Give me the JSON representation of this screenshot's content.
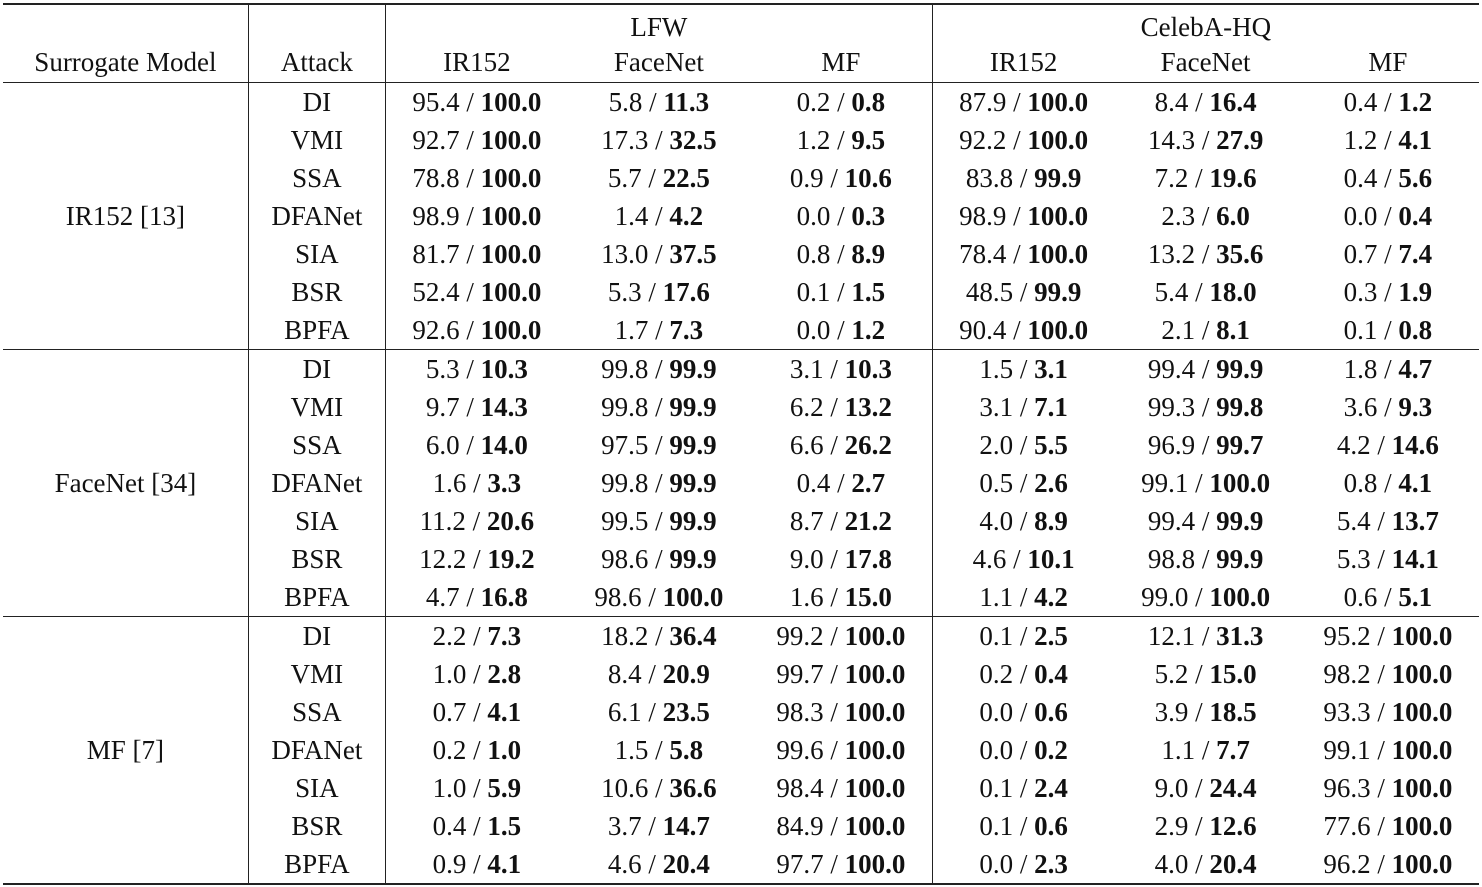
{
  "header": {
    "surrogate_model": "Surrogate Model",
    "attack": "Attack",
    "datasets": [
      {
        "name": "LFW",
        "models": [
          "IR152",
          "FaceNet",
          "MF"
        ]
      },
      {
        "name": "CelebA-HQ",
        "models": [
          "IR152",
          "FaceNet",
          "MF"
        ]
      }
    ]
  },
  "groups": [
    {
      "surrogate": "IR152 [13]",
      "rows": [
        {
          "attack": "DI",
          "cells": [
            [
              "95.4",
              "100.0"
            ],
            [
              "5.8",
              "11.3"
            ],
            [
              "0.2",
              "0.8"
            ],
            [
              "87.9",
              "100.0"
            ],
            [
              "8.4",
              "16.4"
            ],
            [
              "0.4",
              "1.2"
            ]
          ]
        },
        {
          "attack": "VMI",
          "cells": [
            [
              "92.7",
              "100.0"
            ],
            [
              "17.3",
              "32.5"
            ],
            [
              "1.2",
              "9.5"
            ],
            [
              "92.2",
              "100.0"
            ],
            [
              "14.3",
              "27.9"
            ],
            [
              "1.2",
              "4.1"
            ]
          ]
        },
        {
          "attack": "SSA",
          "cells": [
            [
              "78.8",
              "100.0"
            ],
            [
              "5.7",
              "22.5"
            ],
            [
              "0.9",
              "10.6"
            ],
            [
              "83.8",
              "99.9"
            ],
            [
              "7.2",
              "19.6"
            ],
            [
              "0.4",
              "5.6"
            ]
          ]
        },
        {
          "attack": "DFANet",
          "cells": [
            [
              "98.9",
              "100.0"
            ],
            [
              "1.4",
              "4.2"
            ],
            [
              "0.0",
              "0.3"
            ],
            [
              "98.9",
              "100.0"
            ],
            [
              "2.3",
              "6.0"
            ],
            [
              "0.0",
              "0.4"
            ]
          ]
        },
        {
          "attack": "SIA",
          "cells": [
            [
              "81.7",
              "100.0"
            ],
            [
              "13.0",
              "37.5"
            ],
            [
              "0.8",
              "8.9"
            ],
            [
              "78.4",
              "100.0"
            ],
            [
              "13.2",
              "35.6"
            ],
            [
              "0.7",
              "7.4"
            ]
          ]
        },
        {
          "attack": "BSR",
          "cells": [
            [
              "52.4",
              "100.0"
            ],
            [
              "5.3",
              "17.6"
            ],
            [
              "0.1",
              "1.5"
            ],
            [
              "48.5",
              "99.9"
            ],
            [
              "5.4",
              "18.0"
            ],
            [
              "0.3",
              "1.9"
            ]
          ]
        },
        {
          "attack": "BPFA",
          "cells": [
            [
              "92.6",
              "100.0"
            ],
            [
              "1.7",
              "7.3"
            ],
            [
              "0.0",
              "1.2"
            ],
            [
              "90.4",
              "100.0"
            ],
            [
              "2.1",
              "8.1"
            ],
            [
              "0.1",
              "0.8"
            ]
          ]
        }
      ]
    },
    {
      "surrogate": "FaceNet [34]",
      "rows": [
        {
          "attack": "DI",
          "cells": [
            [
              "5.3",
              "10.3"
            ],
            [
              "99.8",
              "99.9"
            ],
            [
              "3.1",
              "10.3"
            ],
            [
              "1.5",
              "3.1"
            ],
            [
              "99.4",
              "99.9"
            ],
            [
              "1.8",
              "4.7"
            ]
          ]
        },
        {
          "attack": "VMI",
          "cells": [
            [
              "9.7",
              "14.3"
            ],
            [
              "99.8",
              "99.9"
            ],
            [
              "6.2",
              "13.2"
            ],
            [
              "3.1",
              "7.1"
            ],
            [
              "99.3",
              "99.8"
            ],
            [
              "3.6",
              "9.3"
            ]
          ]
        },
        {
          "attack": "SSA",
          "cells": [
            [
              "6.0",
              "14.0"
            ],
            [
              "97.5",
              "99.9"
            ],
            [
              "6.6",
              "26.2"
            ],
            [
              "2.0",
              "5.5"
            ],
            [
              "96.9",
              "99.7"
            ],
            [
              "4.2",
              "14.6"
            ]
          ]
        },
        {
          "attack": "DFANet",
          "cells": [
            [
              "1.6",
              "3.3"
            ],
            [
              "99.8",
              "99.9"
            ],
            [
              "0.4",
              "2.7"
            ],
            [
              "0.5",
              "2.6"
            ],
            [
              "99.1",
              "100.0"
            ],
            [
              "0.8",
              "4.1"
            ]
          ]
        },
        {
          "attack": "SIA",
          "cells": [
            [
              "11.2",
              "20.6"
            ],
            [
              "99.5",
              "99.9"
            ],
            [
              "8.7",
              "21.2"
            ],
            [
              "4.0",
              "8.9"
            ],
            [
              "99.4",
              "99.9"
            ],
            [
              "5.4",
              "13.7"
            ]
          ]
        },
        {
          "attack": "BSR",
          "cells": [
            [
              "12.2",
              "19.2"
            ],
            [
              "98.6",
              "99.9"
            ],
            [
              "9.0",
              "17.8"
            ],
            [
              "4.6",
              "10.1"
            ],
            [
              "98.8",
              "99.9"
            ],
            [
              "5.3",
              "14.1"
            ]
          ]
        },
        {
          "attack": "BPFA",
          "cells": [
            [
              "4.7",
              "16.8"
            ],
            [
              "98.6",
              "100.0"
            ],
            [
              "1.6",
              "15.0"
            ],
            [
              "1.1",
              "4.2"
            ],
            [
              "99.0",
              "100.0"
            ],
            [
              "0.6",
              "5.1"
            ]
          ]
        }
      ]
    },
    {
      "surrogate": "MF [7]",
      "rows": [
        {
          "attack": "DI",
          "cells": [
            [
              "2.2",
              "7.3"
            ],
            [
              "18.2",
              "36.4"
            ],
            [
              "99.2",
              "100.0"
            ],
            [
              "0.1",
              "2.5"
            ],
            [
              "12.1",
              "31.3"
            ],
            [
              "95.2",
              "100.0"
            ]
          ]
        },
        {
          "attack": "VMI",
          "cells": [
            [
              "1.0",
              "2.8"
            ],
            [
              "8.4",
              "20.9"
            ],
            [
              "99.7",
              "100.0"
            ],
            [
              "0.2",
              "0.4"
            ],
            [
              "5.2",
              "15.0"
            ],
            [
              "98.2",
              "100.0"
            ]
          ]
        },
        {
          "attack": "SSA",
          "cells": [
            [
              "0.7",
              "4.1"
            ],
            [
              "6.1",
              "23.5"
            ],
            [
              "98.3",
              "100.0"
            ],
            [
              "0.0",
              "0.6"
            ],
            [
              "3.9",
              "18.5"
            ],
            [
              "93.3",
              "100.0"
            ]
          ]
        },
        {
          "attack": "DFANet",
          "cells": [
            [
              "0.2",
              "1.0"
            ],
            [
              "1.5",
              "5.8"
            ],
            [
              "99.6",
              "100.0"
            ],
            [
              "0.0",
              "0.2"
            ],
            [
              "1.1",
              "7.7"
            ],
            [
              "99.1",
              "100.0"
            ]
          ]
        },
        {
          "attack": "SIA",
          "cells": [
            [
              "1.0",
              "5.9"
            ],
            [
              "10.6",
              "36.6"
            ],
            [
              "98.4",
              "100.0"
            ],
            [
              "0.1",
              "2.4"
            ],
            [
              "9.0",
              "24.4"
            ],
            [
              "96.3",
              "100.0"
            ]
          ]
        },
        {
          "attack": "BSR",
          "cells": [
            [
              "0.4",
              "1.5"
            ],
            [
              "3.7",
              "14.7"
            ],
            [
              "84.9",
              "100.0"
            ],
            [
              "0.1",
              "0.6"
            ],
            [
              "2.9",
              "12.6"
            ],
            [
              "77.6",
              "100.0"
            ]
          ]
        },
        {
          "attack": "BPFA",
          "cells": [
            [
              "0.9",
              "4.1"
            ],
            [
              "4.6",
              "20.4"
            ],
            [
              "97.7",
              "100.0"
            ],
            [
              "0.0",
              "2.3"
            ],
            [
              "4.0",
              "20.4"
            ],
            [
              "96.2",
              "100.0"
            ]
          ]
        }
      ]
    }
  ],
  "separator": " / "
}
